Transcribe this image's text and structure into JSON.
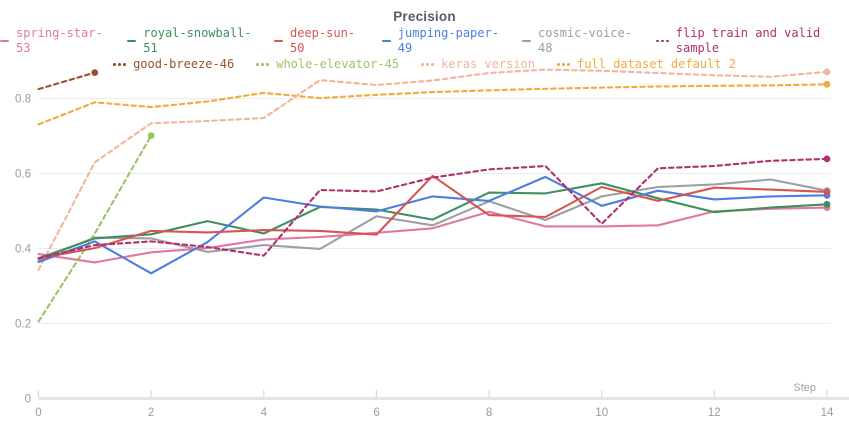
{
  "chart_data": {
    "type": "line",
    "title": "Precision",
    "xlabel": "Step",
    "x_ticks": [
      0,
      2,
      4,
      6,
      8,
      10,
      12,
      14
    ],
    "y_ticks": [
      0,
      0.2,
      0.4,
      0.6,
      0.8
    ],
    "xlim": [
      0,
      14
    ],
    "ylim": [
      0,
      0.95
    ],
    "grid": "horizontal-only",
    "legend_position": "top",
    "series": [
      {
        "id": "spring-star-53",
        "label": "spring-star-53",
        "color": "#e1799f",
        "dashed": false,
        "x": [
          0,
          1,
          2,
          3,
          4,
          5,
          6,
          7,
          8,
          9,
          10,
          11,
          12,
          13,
          14
        ],
        "y": [
          0.385,
          0.363,
          0.39,
          0.401,
          0.424,
          0.431,
          0.442,
          0.454,
          0.498,
          0.459,
          0.459,
          0.462,
          0.499,
          0.506,
          0.509
        ]
      },
      {
        "id": "royal-snowball-51",
        "label": "royal-snowball-51",
        "color": "#3f8f5f",
        "dashed": false,
        "x": [
          0,
          1,
          2,
          3,
          4,
          5,
          6,
          7,
          8,
          9,
          10,
          11,
          12,
          13,
          14
        ],
        "y": [
          0.374,
          0.427,
          0.438,
          0.473,
          0.44,
          0.511,
          0.504,
          0.477,
          0.549,
          0.547,
          0.574,
          0.534,
          0.497,
          0.509,
          0.518
        ]
      },
      {
        "id": "deep-sun-50",
        "label": "deep-sun-50",
        "color": "#d65552",
        "dashed": false,
        "x": [
          0,
          1,
          2,
          3,
          4,
          5,
          6,
          7,
          8,
          9,
          10,
          11,
          12,
          13,
          14
        ],
        "y": [
          0.374,
          0.401,
          0.447,
          0.443,
          0.449,
          0.447,
          0.437,
          0.594,
          0.489,
          0.484,
          0.564,
          0.527,
          0.562,
          0.557,
          0.551
        ]
      },
      {
        "id": "jumping-paper-49",
        "label": "jumping-paper-49",
        "color": "#4d7de0",
        "dashed": false,
        "x": [
          0,
          1,
          2,
          3,
          4,
          5,
          6,
          7,
          8,
          9,
          10,
          11,
          12,
          13,
          14
        ],
        "y": [
          0.364,
          0.419,
          0.334,
          0.417,
          0.536,
          0.512,
          0.499,
          0.539,
          0.527,
          0.591,
          0.514,
          0.554,
          0.531,
          0.539,
          0.542
        ]
      },
      {
        "id": "cosmic-voice-48",
        "label": "cosmic-voice-48",
        "color": "#9d9fa3",
        "dashed": false,
        "x": [
          0,
          1,
          2,
          3,
          4,
          5,
          6,
          7,
          8,
          9,
          10,
          11,
          12,
          13,
          14
        ],
        "y": [
          0.369,
          0.429,
          0.427,
          0.391,
          0.409,
          0.399,
          0.486,
          0.462,
          0.526,
          0.476,
          0.539,
          0.564,
          0.571,
          0.584,
          0.554
        ]
      },
      {
        "id": "flip-train-and-valid-sample",
        "label": "flip train and valid sample",
        "color": "#b03070",
        "dashed": true,
        "x": [
          0,
          1,
          2,
          3,
          4,
          5,
          6,
          7,
          8,
          9,
          10,
          11,
          12,
          13,
          14
        ],
        "y": [
          0.374,
          0.409,
          0.419,
          0.404,
          0.381,
          0.556,
          0.552,
          0.589,
          0.611,
          0.62,
          0.466,
          0.614,
          0.62,
          0.634,
          0.639
        ]
      },
      {
        "id": "good-breeze-46",
        "label": "good-breeze-46",
        "color": "#99512f",
        "dashed": true,
        "x": [
          0,
          1
        ],
        "y": [
          0.825,
          0.869
        ]
      },
      {
        "id": "whole-elevator-45",
        "label": "whole-elevator-45",
        "color": "#9ac565",
        "dashed": true,
        "x": [
          0,
          1,
          2
        ],
        "y": [
          0.205,
          0.44,
          0.701
        ]
      },
      {
        "id": "keras-version",
        "label": "keras version",
        "color": "#f3b49c",
        "dashed": true,
        "x": [
          0,
          1,
          2,
          3,
          4,
          5,
          6,
          7,
          8,
          9,
          10,
          11,
          12,
          13,
          14
        ],
        "y": [
          0.343,
          0.63,
          0.734,
          0.74,
          0.748,
          0.849,
          0.836,
          0.848,
          0.868,
          0.877,
          0.874,
          0.868,
          0.862,
          0.858,
          0.871
        ]
      },
      {
        "id": "full-dataset-default-2",
        "label": "full dataset default 2",
        "color": "#efac3c",
        "dashed": true,
        "x": [
          0,
          1,
          2,
          3,
          4,
          5,
          6,
          7,
          8,
          9,
          10,
          11,
          12,
          13,
          14
        ],
        "y": [
          0.731,
          0.79,
          0.777,
          0.792,
          0.815,
          0.801,
          0.81,
          0.817,
          0.822,
          0.826,
          0.829,
          0.832,
          0.834,
          0.835,
          0.838
        ]
      }
    ],
    "legend_rows": [
      [
        "spring-star-53",
        "royal-snowball-51",
        "deep-sun-50",
        "jumping-paper-49",
        "cosmic-voice-48",
        "flip-train-and-valid-sample"
      ],
      [
        "good-breeze-46",
        "whole-elevator-45",
        "keras-version",
        "full-dataset-default-2"
      ]
    ],
    "draw_order": [
      "full-dataset-default-2",
      "keras-version",
      "good-breeze-46",
      "whole-elevator-45",
      "cosmic-voice-48",
      "spring-star-53",
      "royal-snowball-51",
      "jumping-paper-49",
      "deep-sun-50",
      "flip-train-and-valid-sample"
    ],
    "colors": {
      "grid": "#ececec",
      "axis": "#e4e4e4",
      "tick": "#d8d8d8",
      "tick_label": "#9b9b9b",
      "axis_label": "#a3a3a3",
      "title": "#565d66"
    }
  }
}
